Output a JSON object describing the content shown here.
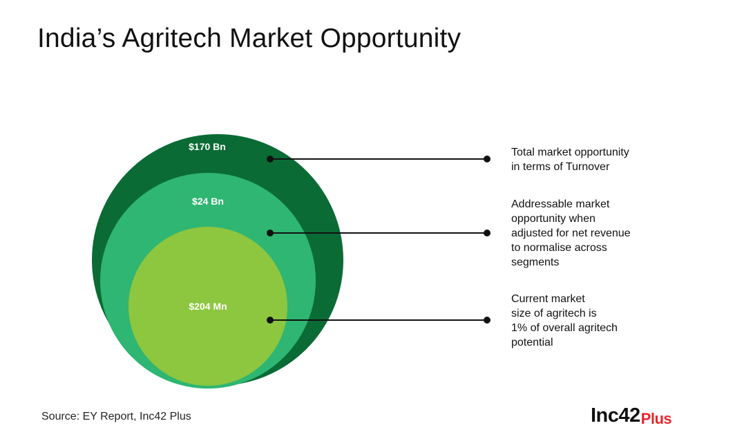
{
  "title": "India’s Agritech Market Opportunity",
  "source": "Source: EY Report, Inc42 Plus",
  "brand": {
    "name": "Inc42",
    "suffix": "Plus"
  },
  "colors": {
    "outer": "#0b6b35",
    "middle": "#2eb672",
    "inner": "#8dc63f",
    "accent": "#e8262f"
  },
  "chart_data": {
    "type": "nested-bubble",
    "values": [
      {
        "label": "$170 Bn",
        "description": [
          "Total market opportunity",
          "in terms of Turnover"
        ]
      },
      {
        "label": "$24 Bn",
        "description": [
          "Addressable market",
          "opportunity when",
          "adjusted for net revenue",
          "to normalise across",
          "segments"
        ]
      },
      {
        "label": "$204 Mn",
        "description": [
          "Current market",
          "size of agritech is",
          "1% of overall agritech",
          "potential"
        ]
      }
    ]
  }
}
